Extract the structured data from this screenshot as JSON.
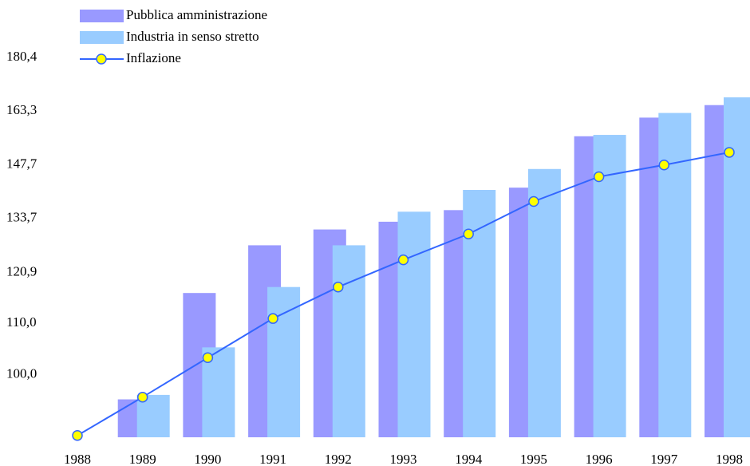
{
  "chart_data": {
    "type": "bar_line",
    "categories": [
      "1988",
      "1989",
      "1990",
      "1991",
      "1992",
      "1993",
      "1994",
      "1995",
      "1996",
      "1997",
      "1998"
    ],
    "series": [
      {
        "name": "Pubblica amministrazione",
        "color": "#9999ff",
        "kind": "bar",
        "values": [
          null,
          95.5,
          116.4,
          127.2,
          131.0,
          132.9,
          135.8,
          141.6,
          155.8,
          161.3,
          165.1
        ]
      },
      {
        "name": "Industria in senso stretto",
        "color": "#99ccff",
        "kind": "bar",
        "values": [
          null,
          96.3,
          105.2,
          117.7,
          127.2,
          135.4,
          141.0,
          146.6,
          156.2,
          162.7,
          167.5
        ]
      },
      {
        "name": "Inflazione",
        "color": "#3366ff",
        "marker_color": "#ffff00",
        "kind": "line",
        "values": [
          89.3,
          95.9,
          103.2,
          111.0,
          117.7,
          123.8,
          129.9,
          138.0,
          144.5,
          147.7,
          151.2
        ]
      }
    ],
    "log_scale": true,
    "ylim": [
      89,
      180.4
    ],
    "yticks": [
      {
        "value": 100,
        "label": "100,0"
      },
      {
        "value": 110,
        "label": "110,0"
      },
      {
        "value": 120.9,
        "label": "120,9"
      },
      {
        "value": 133.7,
        "label": "133,7"
      },
      {
        "value": 147.7,
        "label": "147,7"
      },
      {
        "value": 163.3,
        "label": "163,3"
      },
      {
        "value": 180.4,
        "label": "180,4"
      }
    ],
    "grid": false,
    "legend": "top-left"
  }
}
